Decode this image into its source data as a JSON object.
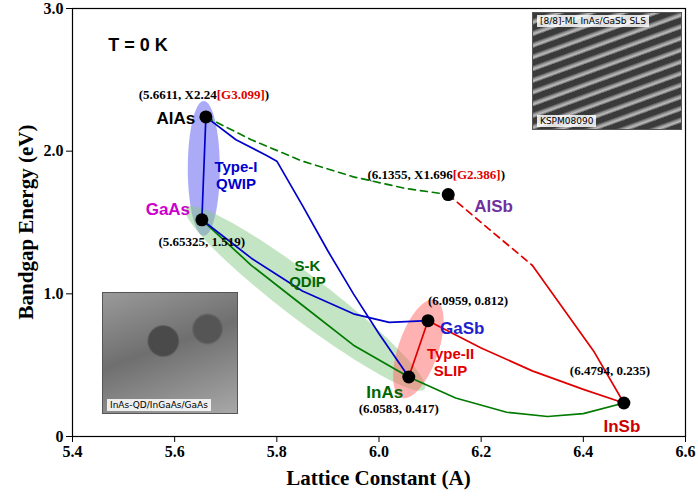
{
  "chart_data": {
    "type": "scatter",
    "x_label": "Lattice Constant (A)",
    "y_label": "Bandgap Energy (eV)",
    "xlim": [
      5.4,
      6.6
    ],
    "xticks": [
      5.4,
      5.6,
      5.8,
      {
        "value": 6,
        "label": "6.0"
      },
      6.2,
      6.4,
      6.6
    ],
    "ylim": [
      0,
      3
    ],
    "yticks": [
      0,
      {
        "value": 1,
        "label": "1.0"
      },
      {
        "value": 2,
        "label": "2.0"
      },
      {
        "value": 3,
        "label": "3.0"
      }
    ],
    "grid": false,
    "points": [
      {
        "label": "AlAs",
        "x": 5.6611,
        "y": 2.24,
        "color": "#000000",
        "coord_label": "(5.6611, X2.24[G3.099])",
        "highlight": "[G3.099]"
      },
      {
        "label": "GaAs",
        "x": 5.65325,
        "y": 1.519,
        "color": "#cc00cc",
        "coord_label": "(5.65325, 1.519)"
      },
      {
        "label": "AlSb",
        "x": 6.1355,
        "y": 1.696,
        "color": "#7030a0",
        "coord_label": "(6.1355, X1.696[G2.386])",
        "highlight": "[G2.386]"
      },
      {
        "label": "GaSb",
        "x": 6.0959,
        "y": 0.812,
        "color": "#1f1fcc",
        "coord_label": "(6.0959, 0.812)"
      },
      {
        "label": "InAs",
        "x": 6.0583,
        "y": 0.417,
        "color": "#006600",
        "coord_label": "(6.0583, 0.417)"
      },
      {
        "label": "InSb",
        "x": 6.4794,
        "y": 0.235,
        "color": "#cc0000",
        "coord_label": "(6.4794, 0.235)"
      }
    ],
    "curves": [
      {
        "color": "#0000cc",
        "line_style": "solid",
        "x": [
          5.6611,
          5.65325
        ],
        "y": [
          2.24,
          1.519
        ]
      },
      {
        "color": "#0000cc",
        "line_style": "solid",
        "x": [
          5.6611,
          5.72,
          5.78,
          5.8,
          5.85,
          5.9,
          5.95,
          6.0,
          6.0583
        ],
        "y": [
          2.24,
          2.08,
          1.97,
          1.93,
          1.62,
          1.3,
          1.0,
          0.72,
          0.417
        ]
      },
      {
        "color": "#007a00",
        "line_style": "dashed",
        "x": [
          5.6611,
          5.75,
          5.85,
          5.95,
          6.05,
          6.1355
        ],
        "y": [
          2.24,
          2.08,
          1.93,
          1.82,
          1.74,
          1.696
        ]
      },
      {
        "color": "#007a00",
        "line_style": "solid",
        "x": [
          5.65325,
          5.75,
          5.85,
          5.95,
          6.0583
        ],
        "y": [
          1.519,
          1.2,
          0.92,
          0.64,
          0.417
        ]
      },
      {
        "color": "#0000cc",
        "line_style": "solid",
        "x": [
          5.65325,
          5.75,
          5.85,
          5.95,
          6.02,
          6.0959
        ],
        "y": [
          1.519,
          1.25,
          1.02,
          0.86,
          0.8,
          0.812
        ]
      },
      {
        "color": "#007a00",
        "line_style": "solid",
        "x": [
          6.0583,
          6.15,
          6.25,
          6.33,
          6.4,
          6.4794
        ],
        "y": [
          0.417,
          0.27,
          0.17,
          0.14,
          0.16,
          0.235
        ]
      },
      {
        "color": "#e00000",
        "line_style": "solid",
        "x": [
          6.0959,
          6.2,
          6.3,
          6.4,
          6.4794
        ],
        "y": [
          0.812,
          0.62,
          0.46,
          0.33,
          0.235
        ]
      },
      {
        "color": "#e00000",
        "line_style": "dashed",
        "x": [
          6.1355,
          6.2,
          6.3
        ],
        "y": [
          1.696,
          1.5,
          1.2
        ]
      },
      {
        "color": "#e00000",
        "line_style": "solid",
        "x": [
          6.3,
          6.35,
          6.42,
          6.4794
        ],
        "y": [
          1.2,
          0.95,
          0.6,
          0.235
        ]
      },
      {
        "color": "#e00000",
        "line_style": "solid",
        "x": [
          6.0583,
          6.0959
        ],
        "y": [
          0.417,
          0.812
        ]
      }
    ],
    "regions": [
      {
        "color": "#5555ee",
        "x": [
          5.657,
          5.657
        ],
        "y": [
          2.24,
          1.519
        ]
      },
      {
        "color": "#88cc88",
        "x": [
          5.65325,
          6.0583
        ],
        "y": [
          1.519,
          0.417
        ]
      },
      {
        "color": "#ff6666",
        "x": [
          6.0583,
          6.0959
        ],
        "y": [
          0.417,
          0.812
        ]
      }
    ],
    "annotations": [
      {
        "text": "T = 0 K",
        "x": 5.47,
        "y": 2.75,
        "color": "#000000"
      },
      {
        "text": "Type-I\nQWIP",
        "x": 5.72,
        "y": 1.83,
        "color": "#0000cc"
      },
      {
        "text": "S-K\nQDIP",
        "x": 5.86,
        "y": 1.14,
        "color": "#006600"
      },
      {
        "text": "Type-II\nSLIP",
        "x": 6.14,
        "y": 0.52,
        "color": "#e00000"
      }
    ],
    "insets": [
      {
        "caption": "[8/8]-ML InAs/GaSb SLS",
        "code": "KSPM08090"
      },
      {
        "caption": "InAs-QD/InGaAs/GaAs"
      }
    ]
  }
}
